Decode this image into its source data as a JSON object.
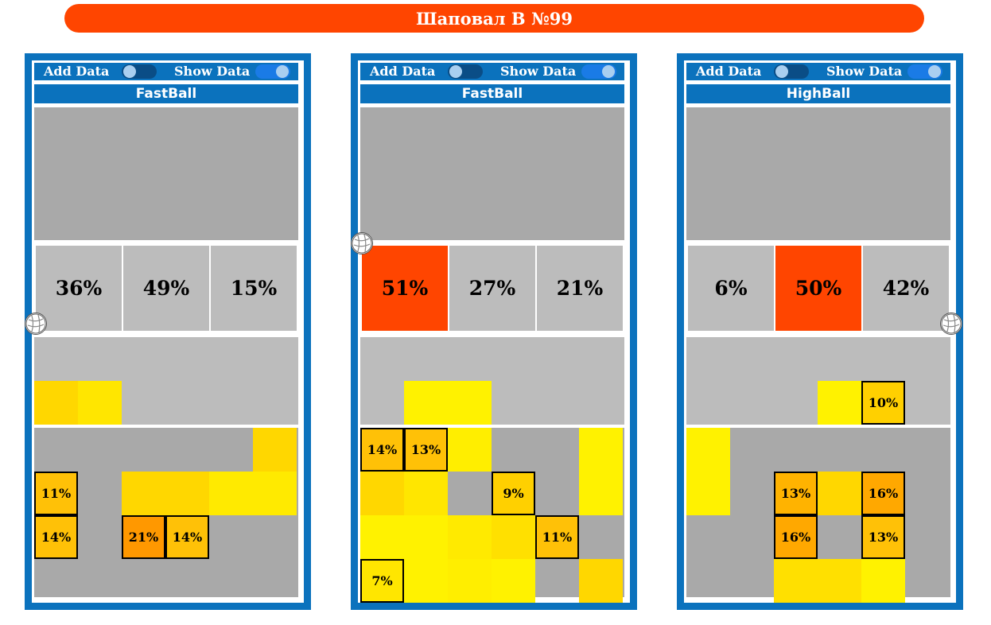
{
  "header": {
    "title": "Шаповал В №99"
  },
  "colors": {
    "title_bar": "#ff4500",
    "panel_blue": "#0b72bd",
    "hot_zone": "#ff4500",
    "zone_gray": "#bcbcbc",
    "court_gray": "#a9a9a9"
  },
  "panels": [
    {
      "add_data_label": "Add Data",
      "show_data_label": "Show Data",
      "add_data_on": false,
      "show_data_on": true,
      "name": "FastBall",
      "zones": [
        {
          "value": "36%",
          "hot": false
        },
        {
          "value": "49%",
          "hot": false
        },
        {
          "value": "15%",
          "hot": false
        }
      ],
      "ball_icon": "volleyball-icon",
      "heat_cells": [
        {
          "row": 0,
          "col": 0,
          "color": "#ffd700",
          "label": ""
        },
        {
          "row": 0,
          "col": 1,
          "color": "#ffe600",
          "label": ""
        },
        {
          "row": 1,
          "col": 5,
          "color": "#ffd700",
          "label": ""
        },
        {
          "row": 2,
          "col": 0,
          "color": "#ffc107",
          "label": "11%"
        },
        {
          "row": 2,
          "col": 2,
          "color": "#ffd700",
          "label": ""
        },
        {
          "row": 2,
          "col": 3,
          "color": "#ffd700",
          "label": ""
        },
        {
          "row": 2,
          "col": 4,
          "color": "#ffea00",
          "label": ""
        },
        {
          "row": 2,
          "col": 5,
          "color": "#ffea00",
          "label": ""
        },
        {
          "row": 3,
          "col": 0,
          "color": "#ffc107",
          "label": "14%"
        },
        {
          "row": 3,
          "col": 2,
          "color": "#ff9800",
          "label": "21%"
        },
        {
          "row": 3,
          "col": 3,
          "color": "#ffc107",
          "label": "14%"
        }
      ]
    },
    {
      "add_data_label": "Add Data",
      "show_data_label": "Show Data",
      "add_data_on": false,
      "show_data_on": true,
      "name": "FastBall",
      "zones": [
        {
          "value": "51%",
          "hot": true
        },
        {
          "value": "27%",
          "hot": false
        },
        {
          "value": "21%",
          "hot": false
        }
      ],
      "ball_icon": "volleyball-icon",
      "heat_cells": [
        {
          "row": 0,
          "col": 1,
          "color": "#fff200",
          "label": ""
        },
        {
          "row": 0,
          "col": 2,
          "color": "#fff200",
          "label": ""
        },
        {
          "row": 1,
          "col": 0,
          "color": "#ffc107",
          "label": "14%"
        },
        {
          "row": 1,
          "col": 1,
          "color": "#ffc107",
          "label": "13%"
        },
        {
          "row": 1,
          "col": 2,
          "color": "#ffee00",
          "label": ""
        },
        {
          "row": 1,
          "col": 5,
          "color": "#fff200",
          "label": ""
        },
        {
          "row": 2,
          "col": 0,
          "color": "#ffd700",
          "label": ""
        },
        {
          "row": 2,
          "col": 1,
          "color": "#ffe600",
          "label": ""
        },
        {
          "row": 2,
          "col": 3,
          "color": "#ffd000",
          "label": "9%"
        },
        {
          "row": 2,
          "col": 5,
          "color": "#fff200",
          "label": ""
        },
        {
          "row": 3,
          "col": 0,
          "color": "#fff200",
          "label": ""
        },
        {
          "row": 3,
          "col": 1,
          "color": "#fff200",
          "label": ""
        },
        {
          "row": 3,
          "col": 2,
          "color": "#ffea00",
          "label": ""
        },
        {
          "row": 3,
          "col": 3,
          "color": "#ffe000",
          "label": ""
        },
        {
          "row": 3,
          "col": 4,
          "color": "#ffc107",
          "label": "11%"
        },
        {
          "row": 4,
          "col": 0,
          "color": "#ffe600",
          "label": "7%"
        },
        {
          "row": 4,
          "col": 1,
          "color": "#fff200",
          "label": ""
        },
        {
          "row": 4,
          "col": 2,
          "color": "#ffee00",
          "label": ""
        },
        {
          "row": 4,
          "col": 3,
          "color": "#fff200",
          "label": ""
        },
        {
          "row": 4,
          "col": 5,
          "color": "#ffd700",
          "label": ""
        }
      ]
    },
    {
      "add_data_label": "Add Data",
      "show_data_label": "Show Data",
      "add_data_on": false,
      "show_data_on": true,
      "name": "HighBall",
      "zones": [
        {
          "value": "6%",
          "hot": false
        },
        {
          "value": "50%",
          "hot": true
        },
        {
          "value": "42%",
          "hot": false
        }
      ],
      "ball_icon": "volleyball-icon",
      "heat_cells": [
        {
          "row": 0,
          "col": 3,
          "color": "#fff200",
          "label": ""
        },
        {
          "row": 0,
          "col": 4,
          "color": "#ffd000",
          "label": "10%"
        },
        {
          "row": 1,
          "col": 0,
          "color": "#fff200",
          "label": ""
        },
        {
          "row": 2,
          "col": 0,
          "color": "#fff200",
          "label": ""
        },
        {
          "row": 2,
          "col": 2,
          "color": "#ffb300",
          "label": "13%"
        },
        {
          "row": 2,
          "col": 3,
          "color": "#ffd700",
          "label": ""
        },
        {
          "row": 2,
          "col": 4,
          "color": "#ffa800",
          "label": "16%"
        },
        {
          "row": 3,
          "col": 2,
          "color": "#ffa800",
          "label": "16%"
        },
        {
          "row": 3,
          "col": 4,
          "color": "#ffc107",
          "label": "13%"
        },
        {
          "row": 4,
          "col": 2,
          "color": "#ffe000",
          "label": ""
        },
        {
          "row": 4,
          "col": 3,
          "color": "#ffe000",
          "label": ""
        },
        {
          "row": 4,
          "col": 4,
          "color": "#fff200",
          "label": ""
        }
      ]
    }
  ]
}
